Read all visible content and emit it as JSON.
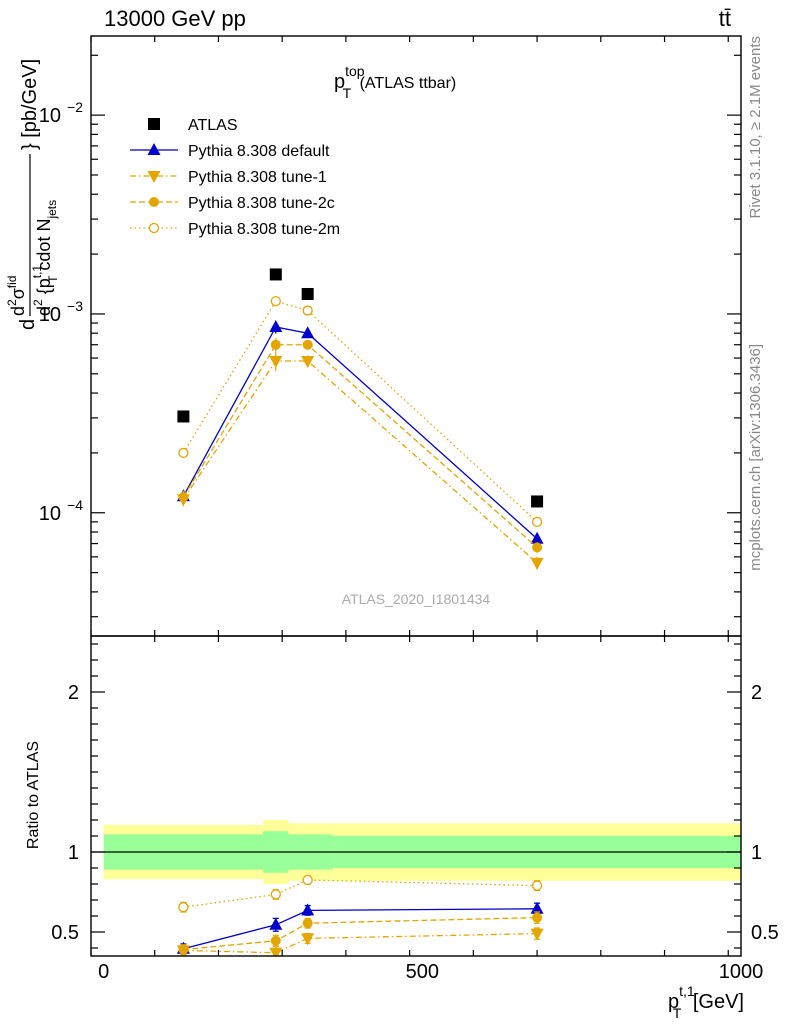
{
  "header": {
    "left": "13000 GeV pp",
    "right": "tt̄"
  },
  "side_text": {
    "rivet": "Rivet 3.1.10, ≥ 2.1M events",
    "mcplots": "mcplots.cern.ch [arXiv:1306.3436]"
  },
  "watermark": "ATLAS_2020_I1801434",
  "chart_data": {
    "type": "scatter",
    "title": {
      "main": "p",
      "sup": "top",
      "sub": "T",
      "suffix": " (ATLAS ttbar)"
    },
    "xlabel": {
      "main": "p",
      "sup": "t,1",
      "sub": "T",
      "suffix": " [GeV]"
    },
    "ylabel": {
      "prefix": "d",
      "num_d": "d",
      "num_exp": "2",
      "num_sigma": "σ",
      "num_sup": "fid",
      "den_d": "d",
      "den_exp": "2",
      "den_text": " {p",
      "den_sup": "t,1",
      "den_sub": "T",
      "den_mid": " cdot N",
      "den_sub2": "jets",
      "close": "} [pb/GeV]"
    },
    "xlim": [
      -20,
      1000
    ],
    "ylim": [
      2.4e-05,
      0.025
    ],
    "y_scale": "log",
    "x_ticks": [
      0,
      500,
      1000
    ],
    "y_ticks": [
      {
        "value": 0.01,
        "base": "10",
        "exp": "−2"
      },
      {
        "value": 0.001,
        "base": "10",
        "exp": "−3"
      },
      {
        "value": 0.0001,
        "base": "10",
        "exp": "−4"
      }
    ],
    "legend_position": "top-left",
    "bins": {
      "edges": [
        0,
        250,
        290,
        360,
        1000
      ],
      "centers": [
        125,
        270,
        320,
        680
      ]
    },
    "series": [
      {
        "name": "ATLAS",
        "marker": "square",
        "color": "#000000",
        "line": "none",
        "values": [
          0.000305,
          0.00158,
          0.00126,
          0.000114
        ],
        "rel_band_inner": [
          0.11,
          0.13,
          0.11,
          0.1
        ],
        "rel_band_outer": [
          0.17,
          0.2,
          0.18,
          0.18
        ]
      },
      {
        "name": "Pythia 8.308 default",
        "marker": "triangle-up",
        "color": "#0000cc",
        "line": "solid",
        "values": [
          0.000121,
          0.00086,
          0.0008,
          7.4e-05
        ],
        "ratio": [
          0.395,
          0.545,
          0.635,
          0.645
        ],
        "ratio_err": [
          0.03,
          0.04,
          0.03,
          0.035
        ]
      },
      {
        "name": "Pythia 8.308 tune-1",
        "marker": "triangle-down",
        "color": "#e3a500",
        "line": "dashdot",
        "values": [
          0.000117,
          0.00058,
          0.00058,
          5.6e-05
        ],
        "ratio": [
          0.385,
          0.37,
          0.46,
          0.49
        ],
        "ratio_err": [
          0.03,
          0.04,
          0.03,
          0.035
        ]
      },
      {
        "name": "Pythia 8.308 tune-2c",
        "marker": "circle",
        "color": "#e3a500",
        "line": "dashed",
        "values": [
          0.00012,
          0.0007,
          0.0007,
          6.7e-05
        ],
        "ratio": [
          0.39,
          0.445,
          0.555,
          0.59
        ],
        "ratio_err": [
          0.03,
          0.035,
          0.03,
          0.035
        ]
      },
      {
        "name": "Pythia 8.308 tune-2m",
        "marker": "circle-open",
        "color": "#e3a500",
        "line": "dotted",
        "values": [
          0.0002,
          0.00116,
          0.00104,
          9e-05
        ],
        "ratio": [
          0.655,
          0.735,
          0.825,
          0.79
        ],
        "ratio_err": [
          0.03,
          0.03,
          0.025,
          0.03
        ]
      }
    ],
    "ratio_panel": {
      "ylabel": "Ratio to ATLAS",
      "ylim": [
        0.35,
        2.35
      ],
      "y_ticks": [
        0.5,
        1,
        2
      ],
      "y_tick_labels": [
        "0.5",
        "1",
        "2"
      ],
      "reference_line": 1.0
    }
  }
}
